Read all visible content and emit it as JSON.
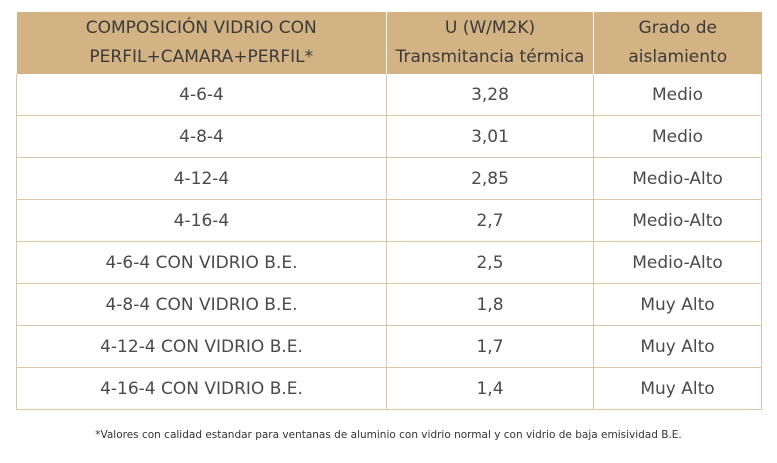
{
  "table": {
    "headers": [
      [
        "COMPOSICIÓN VIDRIO CON",
        "PERFIL+CAMARA+PERFIL*"
      ],
      [
        "U  (W/M2K)",
        "Transmitancia térmica"
      ],
      [
        "Grado de",
        "aislamiento"
      ]
    ],
    "rows": [
      [
        "4-6-4",
        "3,28",
        "Medio"
      ],
      [
        "4-8-4",
        "3,01",
        "Medio"
      ],
      [
        "4-12-4",
        "2,85",
        "Medio-Alto"
      ],
      [
        "4-16-4",
        "2,7",
        "Medio-Alto"
      ],
      [
        "4-6-4 CON VIDRIO B.E.",
        "2,5",
        "Medio-Alto"
      ],
      [
        "4-8-4 CON VIDRIO B.E.",
        "1,8",
        "Muy Alto"
      ],
      [
        "4-12-4 CON VIDRIO B.E.",
        "1,7",
        "Muy Alto"
      ],
      [
        "4-16-4 CON VIDRIO B.E.",
        "1,4",
        "Muy Alto"
      ]
    ]
  },
  "footnote": "*Valores con calidad estandar para ventanas de aluminio con vidrio normal y con vidrio de baja emisividad B.E.",
  "colors": {
    "header_background": "#d3b384",
    "grid_lines": "#d9c7a6"
  }
}
